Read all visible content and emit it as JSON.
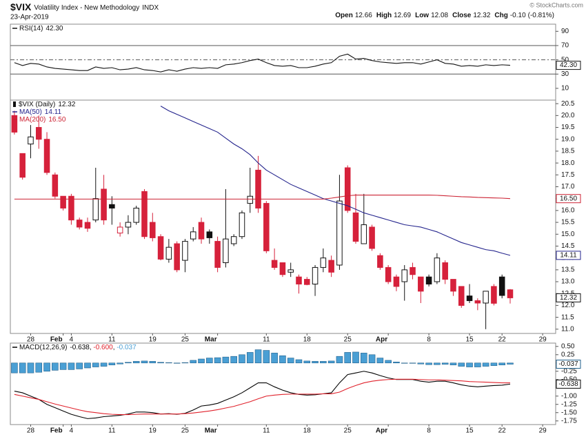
{
  "header": {
    "symbol": "$VIX",
    "name": "Volatility Index - New Methodology",
    "exchange": "INDX",
    "date": "23-Apr-2019",
    "open_label": "Open",
    "high_label": "High",
    "low_label": "Low",
    "close_label": "Close",
    "change_label": "Chg",
    "change": {
      "value": -0.1,
      "label": "-0.10"
    },
    "change_pct": {
      "value": -0.81,
      "label": "(-0.81%)"
    },
    "credit": "© StockCharts.com"
  },
  "chart_data": [
    {
      "type": "line",
      "legend_layout": "stacked",
      "xlim": [
        -0.5,
        66.6
      ],
      "ylim": [
        -6.5,
        100
      ],
      "yticks": [
        10,
        30,
        50,
        70,
        90
      ],
      "ref_lines": [
        {
          "value": 70,
          "style": "solid"
        },
        {
          "value": 50,
          "style": "dashed"
        },
        {
          "value": 30,
          "style": "solid"
        }
      ],
      "series": [
        {
          "name": "RSI(14)",
          "color": "#111111",
          "type": "line",
          "box": true,
          "value_labels": {
            "61": "42.30"
          },
          "values": [
            46,
            42,
            45,
            44,
            40,
            38,
            37,
            36,
            35,
            35,
            40,
            38,
            39,
            36,
            37,
            39,
            36,
            35,
            33,
            36,
            34,
            37,
            39,
            38,
            39,
            38,
            43,
            44,
            46,
            49,
            51,
            46,
            42,
            41,
            42,
            39,
            39,
            41,
            44,
            46,
            55,
            58,
            51,
            52,
            49,
            47,
            46,
            45,
            46,
            46,
            44,
            47,
            50,
            45,
            44,
            41,
            42,
            41,
            43,
            42,
            43,
            42.3
          ]
        }
      ]
    },
    {
      "type": "candlestick",
      "title": "$VIX (Daily)",
      "legend_layout": "stacked",
      "close_box": true,
      "up_color": "#111111",
      "down_color": "#d6213b",
      "xlim": [
        -0.5,
        66.6
      ],
      "ylim": [
        10.82,
        20.65
      ],
      "yticks": [
        {
          "value": 11,
          "label": "11.0"
        },
        11.5,
        {
          "value": 12,
          "label": "12.0"
        },
        12.5,
        {
          "value": 13,
          "label": "13.0"
        },
        13.5,
        {
          "value": 14,
          "label": "14.0"
        },
        14.5,
        {
          "value": 15,
          "label": "15.0"
        },
        15.5,
        {
          "value": 16,
          "label": "16.0"
        },
        16.5,
        {
          "value": 17,
          "label": "17.0"
        },
        17.5,
        {
          "value": 18,
          "label": "18.0"
        },
        18.5,
        {
          "value": 19,
          "label": "19.0"
        },
        19.5,
        {
          "value": 20,
          "label": "20.0"
        },
        20.5
      ],
      "xticks": [
        {
          "value": 2,
          "label": "28"
        },
        {
          "value": 6,
          "label": "Feb",
          "major": true
        },
        {
          "value": 7,
          "label": "4"
        },
        {
          "value": 12,
          "label": "11"
        },
        {
          "value": 17,
          "label": "19"
        },
        {
          "value": 21,
          "label": "25"
        },
        {
          "value": 25,
          "label": "Mar",
          "major": true
        },
        {
          "value": 31,
          "label": "11"
        },
        {
          "value": 36,
          "label": "18"
        },
        {
          "value": 41,
          "label": "25"
        },
        {
          "value": 46,
          "label": "Apr",
          "major": true
        },
        {
          "value": 51,
          "label": "8"
        },
        {
          "value": 56,
          "label": "15"
        },
        {
          "value": 60,
          "label": "22"
        },
        {
          "value": 65,
          "label": "29"
        }
      ],
      "open": [
        20.0,
        18.4,
        18.8,
        19.5,
        19.0,
        17.5,
        16.6,
        16.6,
        15.6,
        15.5,
        15.6,
        16.9,
        16.25,
        15.05,
        15.3,
        15.5,
        16.8,
        15.5,
        14.9,
        13.95,
        14.6,
        13.9,
        14.8,
        15.5,
        15.1,
        14.7,
        13.8,
        14.6,
        14.9,
        16.3,
        17.7,
        16.3,
        13.9,
        13.8,
        13.4,
        13.2,
        13.1,
        12.9,
        13.6,
        13.9,
        13.7,
        17.8,
        15.9,
        14.6,
        15.3,
        14.1,
        13.6,
        13.2,
        13.0,
        13.6,
        13.2,
        13.2,
        13.0,
        13.8,
        13.1,
        12.8,
        12.4,
        12.2,
        12.1,
        12.8,
        13.2,
        12.66
      ],
      "high": [
        20.2,
        18.4,
        19.6,
        20.0,
        19.3,
        17.6,
        16.6,
        16.7,
        15.7,
        15.7,
        17.8,
        17.5,
        16.6,
        15.5,
        15.8,
        16.2,
        16.9,
        15.9,
        15.0,
        14.8,
        14.7,
        14.8,
        15.3,
        15.7,
        15.2,
        14.9,
        16.9,
        15.0,
        16.0,
        17.8,
        18.3,
        16.4,
        14.4,
        13.8,
        13.8,
        13.3,
        13.2,
        13.7,
        14.4,
        14.1,
        17.5,
        17.9,
        16.7,
        16.7,
        15.4,
        14.2,
        13.7,
        13.3,
        13.7,
        13.8,
        13.2,
        13.3,
        14.2,
        13.9,
        13.1,
        12.8,
        12.9,
        12.3,
        12.6,
        12.9,
        13.3,
        12.69
      ],
      "low": [
        19.2,
        17.3,
        18.2,
        18.6,
        17.5,
        16.5,
        16.0,
        15.4,
        15.2,
        15.1,
        15.5,
        15.4,
        15.4,
        14.9,
        15.0,
        15.4,
        14.8,
        14.7,
        13.9,
        13.8,
        13.4,
        13.4,
        14.7,
        14.6,
        14.6,
        13.4,
        13.6,
        14.5,
        14.8,
        15.9,
        15.9,
        14.2,
        13.5,
        13.2,
        13.2,
        12.5,
        12.85,
        12.4,
        13.4,
        13.2,
        13.5,
        15.9,
        14.6,
        14.6,
        14.3,
        13.5,
        12.9,
        12.6,
        12.2,
        13.1,
        12.1,
        12.8,
        12.9,
        12.9,
        12.4,
        11.9,
        12.1,
        11.8,
        11.0,
        12.0,
        12.3,
        12.08
      ],
      "close": [
        19.3,
        17.4,
        19.1,
        19.0,
        17.6,
        16.6,
        16.1,
        15.6,
        15.3,
        15.25,
        16.5,
        15.6,
        16.1,
        15.3,
        15.5,
        16.1,
        14.9,
        14.85,
        13.95,
        14.45,
        13.5,
        14.7,
        15.1,
        14.8,
        14.85,
        13.6,
        14.8,
        14.9,
        15.9,
        16.6,
        16.1,
        14.3,
        13.6,
        13.3,
        13.5,
        12.9,
        12.88,
        13.6,
        14.0,
        13.4,
        16.4,
        16.0,
        14.7,
        15.4,
        14.4,
        13.6,
        13.0,
        12.8,
        13.5,
        13.3,
        12.6,
        12.9,
        14.0,
        13.1,
        12.6,
        12.0,
        12.2,
        12.1,
        12.6,
        12.09,
        12.42,
        12.32
      ],
      "series": [
        {
          "name": "MA(50)",
          "color": "#23238c",
          "type": "line",
          "box": true,
          "values": [
            null,
            null,
            null,
            null,
            null,
            null,
            null,
            null,
            null,
            null,
            null,
            null,
            null,
            null,
            null,
            null,
            null,
            null,
            20.4,
            20.2,
            20.05,
            19.9,
            19.75,
            19.6,
            19.45,
            19.3,
            19.05,
            18.8,
            18.6,
            18.35,
            18.0,
            17.7,
            17.5,
            17.3,
            17.1,
            16.95,
            16.8,
            16.65,
            16.5,
            16.4,
            16.3,
            16.2,
            16.05,
            15.9,
            15.8,
            15.7,
            15.6,
            15.5,
            15.4,
            15.35,
            15.3,
            15.2,
            15.1,
            14.95,
            14.8,
            14.65,
            14.55,
            14.45,
            14.35,
            14.3,
            14.2,
            14.11
          ]
        },
        {
          "name": "MA(200)",
          "color": "#cc2233",
          "type": "line",
          "box": true,
          "value_labels": {
            "61": "16.50"
          },
          "values": [
            16.48,
            16.48,
            16.48,
            16.48,
            16.48,
            16.48,
            16.48,
            16.48,
            16.48,
            16.48,
            16.48,
            16.48,
            16.48,
            16.48,
            16.48,
            16.48,
            16.48,
            16.48,
            16.48,
            16.48,
            16.48,
            16.48,
            16.48,
            16.48,
            16.48,
            16.48,
            16.48,
            16.48,
            16.48,
            16.48,
            16.48,
            16.48,
            16.48,
            16.48,
            16.48,
            16.48,
            16.48,
            16.48,
            16.48,
            16.52,
            16.57,
            16.62,
            16.65,
            16.65,
            16.65,
            16.65,
            16.65,
            16.65,
            16.65,
            16.65,
            16.65,
            16.65,
            16.64,
            16.62,
            16.6,
            16.58,
            16.57,
            16.55,
            16.54,
            16.53,
            16.52,
            16.5
          ]
        }
      ]
    },
    {
      "type": "combo",
      "legend_layout": "inline",
      "legend_separator": ", ",
      "xlim": [
        -0.5,
        66.6
      ],
      "ylim": [
        -1.86,
        0.6
      ],
      "yticks": [
        {
          "value": 0.5,
          "label": "0.50"
        },
        0.25,
        {
          "value": 0,
          "label": "0.00"
        },
        -0.25,
        {
          "value": -0.5,
          "label": "-0.50"
        },
        {
          "value": -1,
          "label": "-1.00"
        },
        -1.25,
        {
          "value": -1.5,
          "label": "-1.50"
        },
        -1.75
      ],
      "xticks": [
        {
          "value": 2,
          "label": "28"
        },
        {
          "value": 6,
          "label": "Feb",
          "major": true
        },
        {
          "value": 7,
          "label": "4"
        },
        {
          "value": 12,
          "label": "11"
        },
        {
          "value": 17,
          "label": "19"
        },
        {
          "value": 21,
          "label": "25"
        },
        {
          "value": 25,
          "label": "Mar",
          "major": true
        },
        {
          "value": 31,
          "label": "11"
        },
        {
          "value": 36,
          "label": "18"
        },
        {
          "value": 41,
          "label": "25"
        },
        {
          "value": 46,
          "label": "Apr",
          "major": true
        },
        {
          "value": 51,
          "label": "8"
        },
        {
          "value": 56,
          "label": "15"
        },
        {
          "value": 60,
          "label": "22"
        },
        {
          "value": 65,
          "label": "29"
        }
      ],
      "series": [
        {
          "name": "MACD(12,26,9)",
          "color": "#000000",
          "type": "line",
          "box": true,
          "values": [
            -0.85,
            -0.9,
            -1.0,
            -1.1,
            -1.25,
            -1.35,
            -1.45,
            -1.55,
            -1.62,
            -1.68,
            -1.66,
            -1.62,
            -1.6,
            -1.58,
            -1.54,
            -1.48,
            -1.48,
            -1.5,
            -1.54,
            -1.53,
            -1.55,
            -1.52,
            -1.42,
            -1.3,
            -1.27,
            -1.22,
            -1.12,
            -1.02,
            -0.9,
            -0.75,
            -0.6,
            -0.6,
            -0.72,
            -0.82,
            -0.9,
            -0.95,
            -0.97,
            -0.96,
            -0.93,
            -0.9,
            -0.6,
            -0.35,
            -0.3,
            -0.25,
            -0.3,
            -0.38,
            -0.45,
            -0.5,
            -0.5,
            -0.5,
            -0.55,
            -0.58,
            -0.55,
            -0.55,
            -0.6,
            -0.66,
            -0.7,
            -0.72,
            -0.7,
            -0.68,
            -0.67,
            -0.638
          ]
        },
        {
          "color": "#e0202a",
          "type": "line",
          "value_labels": {
            "61": "-0.600"
          },
          "values": [
            -0.95,
            -1.0,
            -1.05,
            -1.1,
            -1.17,
            -1.24,
            -1.3,
            -1.36,
            -1.42,
            -1.47,
            -1.5,
            -1.53,
            -1.55,
            -1.56,
            -1.56,
            -1.55,
            -1.54,
            -1.54,
            -1.54,
            -1.54,
            -1.54,
            -1.53,
            -1.51,
            -1.48,
            -1.45,
            -1.41,
            -1.36,
            -1.31,
            -1.24,
            -1.17,
            -1.08,
            -1.0,
            -0.97,
            -0.95,
            -0.94,
            -0.94,
            -0.94,
            -0.94,
            -0.93,
            -0.93,
            -0.88,
            -0.77,
            -0.68,
            -0.6,
            -0.55,
            -0.52,
            -0.5,
            -0.49,
            -0.49,
            -0.49,
            -0.5,
            -0.51,
            -0.51,
            -0.52,
            -0.53,
            -0.54,
            -0.56,
            -0.57,
            -0.58,
            -0.59,
            -0.6,
            -0.6
          ]
        },
        {
          "color": "#4a9fd4",
          "type": "bar",
          "box": true,
          "values": [
            -0.3,
            -0.3,
            -0.3,
            -0.28,
            -0.25,
            -0.22,
            -0.2,
            -0.2,
            -0.18,
            -0.15,
            -0.12,
            -0.1,
            -0.06,
            -0.03,
            0.02,
            0.05,
            0.06,
            0.05,
            0.02,
            0.01,
            -0.01,
            0.01,
            0.08,
            0.12,
            0.15,
            0.16,
            0.18,
            0.2,
            0.25,
            0.32,
            0.4,
            0.38,
            0.3,
            0.22,
            0.15,
            0.1,
            0.06,
            0.05,
            0.05,
            0.06,
            0.2,
            0.32,
            0.33,
            0.3,
            0.25,
            0.15,
            0.08,
            0.03,
            0.0,
            -0.01,
            -0.03,
            -0.05,
            -0.05,
            -0.04,
            -0.06,
            -0.1,
            -0.12,
            -0.12,
            -0.1,
            -0.08,
            -0.06,
            -0.037
          ]
        }
      ]
    }
  ]
}
